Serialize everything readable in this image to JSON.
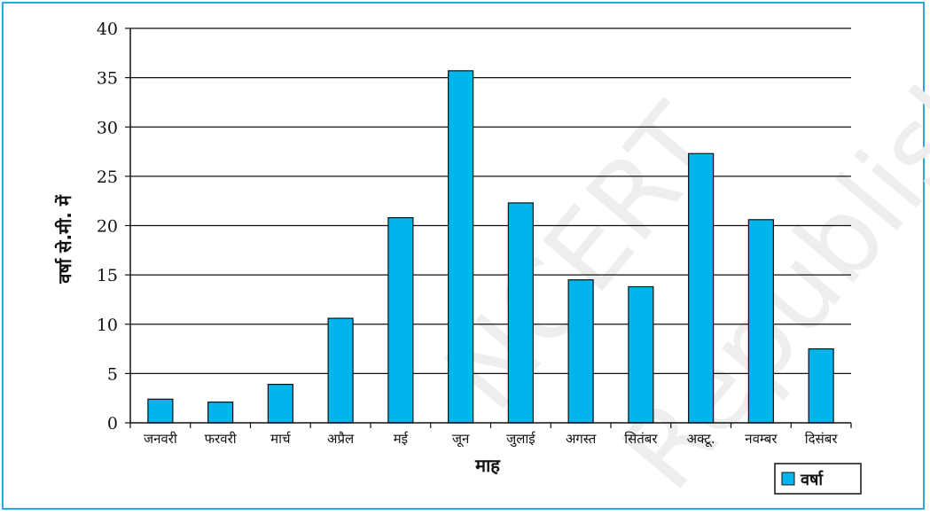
{
  "colors": {
    "border": "#29a9e0",
    "bar": "#00b4ec",
    "bar_stroke": "#111111",
    "grid": "#111111",
    "watermark": "#e6e6e6"
  },
  "watermark": {
    "text1": "NCERT",
    "text2": "Republish"
  },
  "chart_data": {
    "type": "bar",
    "categories": [
      "जनवरी",
      "फरवरी",
      "मार्च",
      "अप्रैल",
      "मई",
      "जून",
      "जुलाई",
      "अगस्त",
      "सितंबर",
      "अक्टू.",
      "नवम्बर",
      "दिसंबर"
    ],
    "series": [
      {
        "name": "वर्षा",
        "values": [
          2.4,
          2.1,
          3.9,
          10.6,
          20.8,
          35.7,
          22.3,
          14.5,
          13.8,
          27.3,
          20.6,
          7.5
        ]
      }
    ],
    "xlabel": "माह",
    "ylabel": "वर्षा से.मी. में",
    "ylim": [
      0,
      40
    ],
    "yticks": [
      0,
      5,
      10,
      15,
      20,
      25,
      30,
      35,
      40
    ],
    "grid": true,
    "legend": "bottom-right"
  }
}
